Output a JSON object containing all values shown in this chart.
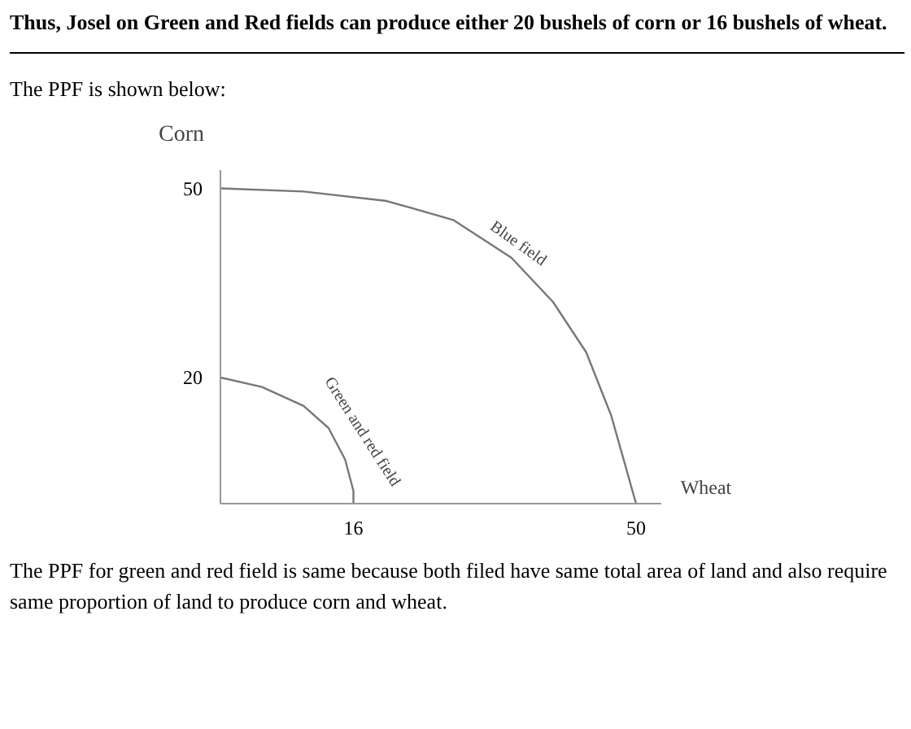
{
  "chart_data": {
    "type": "line",
    "title": "Thus, Josel on Green and Red fields can produce either 20 bushels of corn or 16 bushels of wheat.",
    "subtitle": "The PPF is shown below:",
    "xlabel": "Wheat",
    "ylabel": "Corn",
    "annotations": [
      "The PPF for green and red field is same because both filed have same total area of land and also require same proportion of land to produce corn and wheat."
    ],
    "series": [
      {
        "name": "Blue field",
        "color": "#777777",
        "x": [
          0,
          10,
          20,
          28,
          35,
          40,
          44,
          47,
          50
        ],
        "values": [
          50,
          49.5,
          48,
          45,
          39,
          32,
          24,
          14,
          0
        ]
      },
      {
        "name": "Green and red field",
        "color": "#777777",
        "x": [
          0,
          5,
          10,
          13,
          15,
          16,
          16
        ],
        "values": [
          20,
          18.5,
          15.5,
          12,
          7,
          2,
          0
        ]
      }
    ],
    "xlim": [
      0,
      53
    ],
    "ylim": [
      0,
      53
    ],
    "xticks": [
      16,
      50
    ],
    "yticks": [
      20,
      50
    ],
    "grid": false,
    "marker": "none",
    "line_style": "solid"
  }
}
